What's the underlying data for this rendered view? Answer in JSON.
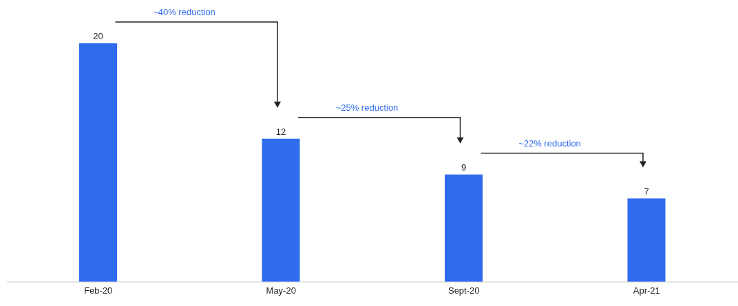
{
  "chart_data": {
    "type": "bar",
    "categories": [
      "Feb-20",
      "May-20",
      "Sept-20",
      "Apr-21"
    ],
    "values": [
      20,
      12,
      9,
      7
    ],
    "color": "#2f6bef",
    "data_labels": true,
    "annotations": [
      "~40% reduction",
      "~25% reduction",
      "~22% reduction"
    ]
  }
}
